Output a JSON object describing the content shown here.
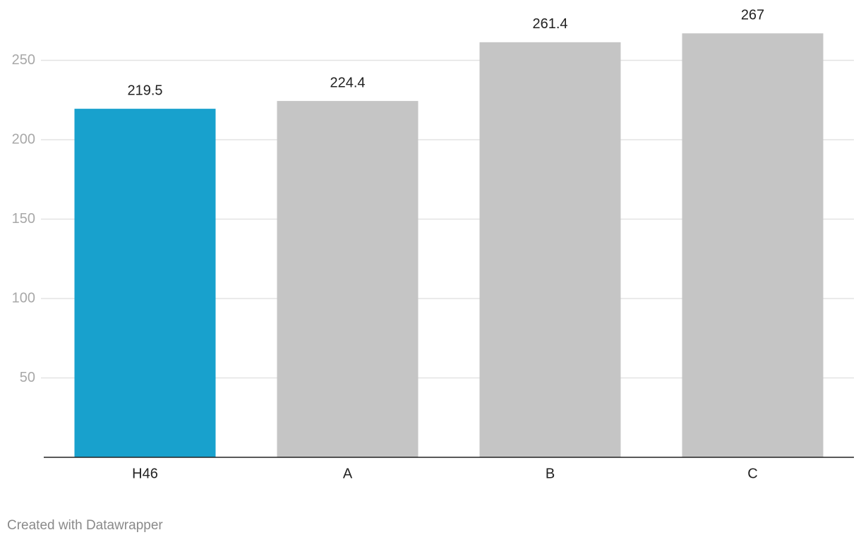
{
  "chart_data": {
    "type": "bar",
    "categories": [
      "H46",
      "A",
      "B",
      "C"
    ],
    "values": [
      219.5,
      224.4,
      261.4,
      267
    ],
    "colors": [
      "#18a1cd",
      "#c5c5c5",
      "#c5c5c5",
      "#c5c5c5"
    ],
    "ylim": [
      0,
      288
    ],
    "yticks": [
      50,
      100,
      150,
      200,
      250
    ],
    "grid": true,
    "credit": "Created with Datawrapper"
  }
}
